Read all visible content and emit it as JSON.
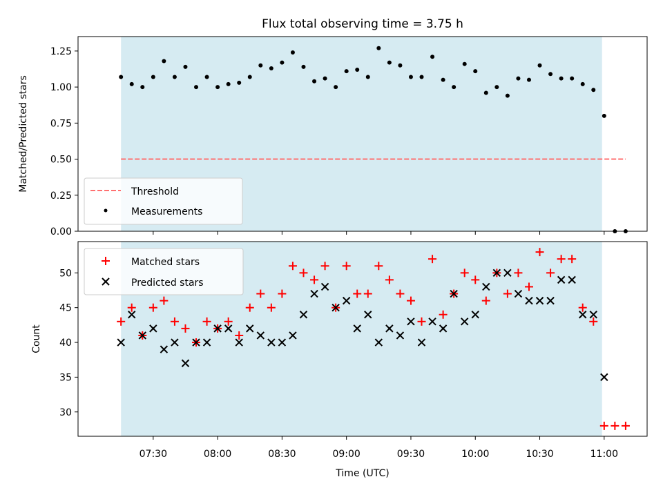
{
  "chart_data": [
    {
      "type": "scatter",
      "title": "Flux total observing time = 3.75 h",
      "xlabel": "",
      "ylabel": "Matched/Predicted stars",
      "ylim": [
        0,
        1.35
      ],
      "yticks": [
        "0.00",
        "0.25",
        "0.50",
        "0.75",
        "1.00",
        "1.25"
      ],
      "ytick_values": [
        0,
        0.25,
        0.5,
        0.75,
        1.0,
        1.25
      ],
      "legend": {
        "placement": "lower-left",
        "entries": [
          "Threshold",
          "Measurements"
        ]
      },
      "threshold": {
        "name": "Threshold",
        "value": 0.5,
        "color": "#ff7070",
        "x_start": "07:15",
        "x_end": "11:10"
      },
      "shaded_span": {
        "start": "07:15",
        "end": "10:59",
        "color": "#add8e6"
      },
      "series": [
        {
          "name": "Measurements",
          "color": "#000000",
          "x": [
            "07:15",
            "07:20",
            "07:25",
            "07:30",
            "07:35",
            "07:40",
            "07:45",
            "07:50",
            "07:55",
            "08:00",
            "08:05",
            "08:10",
            "08:15",
            "08:20",
            "08:25",
            "08:30",
            "08:35",
            "08:40",
            "08:45",
            "08:50",
            "08:55",
            "09:00",
            "09:05",
            "09:10",
            "09:15",
            "09:20",
            "09:25",
            "09:30",
            "09:35",
            "09:40",
            "09:45",
            "09:50",
            "09:55",
            "10:00",
            "10:05",
            "10:10",
            "10:15",
            "10:20",
            "10:25",
            "10:30",
            "10:35",
            "10:40",
            "10:45",
            "10:50",
            "10:55",
            "11:00",
            "11:05",
            "11:10"
          ],
          "y": [
            1.07,
            1.02,
            1.0,
            1.07,
            1.18,
            1.07,
            1.14,
            1.0,
            1.07,
            1.0,
            1.02,
            1.03,
            1.07,
            1.15,
            1.13,
            1.17,
            1.24,
            1.14,
            1.04,
            1.06,
            1.0,
            1.11,
            1.12,
            1.07,
            1.27,
            1.17,
            1.15,
            1.07,
            1.07,
            1.21,
            1.05,
            1.0,
            1.16,
            1.11,
            0.96,
            1.0,
            0.94,
            1.06,
            1.05,
            1.15,
            1.09,
            1.06,
            1.06,
            1.02,
            0.98,
            0.8,
            0.0,
            0.0
          ]
        }
      ]
    },
    {
      "type": "scatter",
      "title": "",
      "xlabel": "Time (UTC)",
      "ylabel": "Count",
      "ylim": [
        26.5,
        54.5
      ],
      "yticks": [
        "30",
        "35",
        "40",
        "45",
        "50"
      ],
      "ytick_values": [
        30,
        35,
        40,
        45,
        50
      ],
      "xlim": [
        "06:55",
        "11:20"
      ],
      "xticks": [
        "07:30",
        "08:00",
        "08:30",
        "09:00",
        "09:30",
        "10:00",
        "10:30",
        "11:00"
      ],
      "legend": {
        "placement": "upper-left",
        "entries": [
          "Matched stars",
          "Predicted stars"
        ]
      },
      "shaded_span": {
        "start": "07:15",
        "end": "10:59",
        "color": "#add8e6"
      },
      "series": [
        {
          "name": "Matched stars",
          "marker": "plus",
          "color": "#ff0000",
          "x": [
            "07:15",
            "07:20",
            "07:25",
            "07:30",
            "07:35",
            "07:40",
            "07:45",
            "07:50",
            "07:55",
            "08:00",
            "08:05",
            "08:10",
            "08:15",
            "08:20",
            "08:25",
            "08:30",
            "08:35",
            "08:40",
            "08:45",
            "08:50",
            "08:55",
            "09:00",
            "09:05",
            "09:10",
            "09:15",
            "09:20",
            "09:25",
            "09:30",
            "09:35",
            "09:40",
            "09:45",
            "09:50",
            "09:55",
            "10:00",
            "10:05",
            "10:10",
            "10:15",
            "10:20",
            "10:25",
            "10:30",
            "10:35",
            "10:40",
            "10:45",
            "10:50",
            "10:55",
            "11:00",
            "11:05",
            "11:10"
          ],
          "y": [
            43,
            45,
            41,
            45,
            46,
            43,
            42,
            40,
            43,
            42,
            43,
            41,
            45,
            47,
            45,
            47,
            51,
            50,
            49,
            51,
            45,
            51,
            47,
            47,
            51,
            49,
            47,
            46,
            43,
            52,
            44,
            47,
            50,
            49,
            46,
            50,
            47,
            50,
            48,
            53,
            50,
            52,
            52,
            45,
            43,
            28,
            28,
            28
          ]
        },
        {
          "name": "Predicted stars",
          "marker": "x",
          "color": "#000000",
          "x": [
            "07:15",
            "07:20",
            "07:25",
            "07:30",
            "07:35",
            "07:40",
            "07:45",
            "07:50",
            "07:55",
            "08:00",
            "08:05",
            "08:10",
            "08:15",
            "08:20",
            "08:25",
            "08:30",
            "08:35",
            "08:40",
            "08:45",
            "08:50",
            "08:55",
            "09:00",
            "09:05",
            "09:10",
            "09:15",
            "09:20",
            "09:25",
            "09:30",
            "09:35",
            "09:40",
            "09:45",
            "09:50",
            "09:55",
            "10:00",
            "10:05",
            "10:10",
            "10:15",
            "10:20",
            "10:25",
            "10:30",
            "10:35",
            "10:40",
            "10:45",
            "10:50",
            "10:55",
            "11:00"
          ],
          "y": [
            40,
            44,
            41,
            42,
            39,
            40,
            37,
            40,
            40,
            42,
            42,
            40,
            42,
            41,
            40,
            40,
            41,
            44,
            47,
            48,
            45,
            46,
            42,
            44,
            40,
            42,
            41,
            43,
            40,
            43,
            42,
            47,
            43,
            44,
            48,
            50,
            50,
            47,
            46,
            46,
            46,
            49,
            49,
            44,
            44,
            35
          ]
        }
      ]
    }
  ]
}
